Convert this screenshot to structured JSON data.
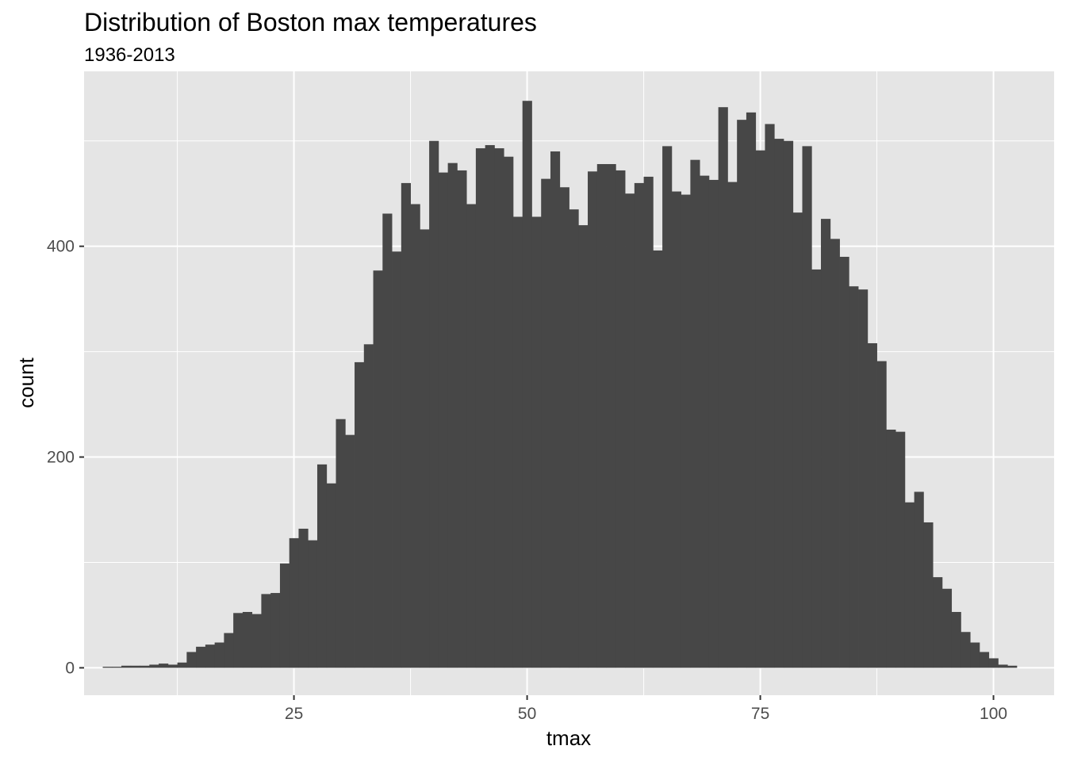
{
  "chart_data": {
    "type": "bar",
    "title": "Distribution of Boston max temperatures",
    "subtitle": "1936-2013",
    "xlabel": "tmax",
    "ylabel": "count",
    "xlim": [
      2.5,
      106.5
    ],
    "ylim": [
      -26,
      566
    ],
    "x_ticks": [
      25,
      50,
      75,
      100
    ],
    "x_tick_labels": [
      "25",
      "50",
      "75",
      "100"
    ],
    "y_ticks": [
      0,
      200,
      400
    ],
    "y_tick_labels": [
      "0",
      "200",
      "400"
    ],
    "bin_width": 1,
    "bin_start": 4.5,
    "values": [
      1,
      1,
      2,
      2,
      2,
      3,
      4,
      3,
      5,
      15,
      20,
      22,
      24,
      33,
      52,
      53,
      51,
      70,
      71,
      99,
      123,
      132,
      121,
      193,
      175,
      236,
      221,
      290,
      307,
      377,
      431,
      395,
      460,
      440,
      416,
      500,
      470,
      479,
      472,
      440,
      493,
      496,
      493,
      485,
      428,
      538,
      428,
      464,
      490,
      456,
      435,
      420,
      471,
      478,
      478,
      472,
      450,
      460,
      466,
      396,
      495,
      452,
      449,
      482,
      467,
      463,
      532,
      461,
      520,
      527,
      491,
      516,
      502,
      500,
      432,
      495,
      378,
      426,
      407,
      390,
      362,
      359,
      308,
      291,
      226,
      224,
      157,
      167,
      138,
      86,
      75,
      53,
      34,
      24,
      15,
      9,
      3,
      2,
      0,
      0
    ],
    "grid": true,
    "panel_background": "#e5e5e5",
    "grid_color": "#ffffff",
    "bar_color": "#474747"
  }
}
